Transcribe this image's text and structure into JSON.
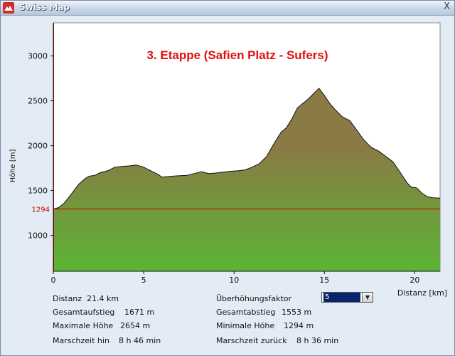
{
  "window": {
    "title": "Swiss Map",
    "close_label": "X"
  },
  "chart_data": {
    "type": "area",
    "title": "3. Etappe (Safien Platz - Sufers)",
    "xlabel": "Distanz [km]",
    "ylabel": "Höhe [m]",
    "xlim": [
      0,
      21.4
    ],
    "ylim": [
      600,
      3370
    ],
    "xticks": [
      0,
      5,
      10,
      15,
      20
    ],
    "yticks": [
      1000,
      1500,
      2000,
      2500,
      3000
    ],
    "reference_line": {
      "value": 1294,
      "label": "1294",
      "color": "#cc0000"
    },
    "fill_top_color": "#8a7a45",
    "fill_bottom_color": "#5ab534",
    "x": [
      0,
      0.3,
      0.6,
      1.0,
      1.4,
      1.8,
      2.0,
      2.3,
      2.6,
      3.0,
      3.4,
      3.8,
      4.2,
      4.6,
      5.0,
      5.4,
      5.8,
      6.0,
      6.3,
      6.6,
      7.0,
      7.4,
      7.8,
      8.2,
      8.6,
      9.0,
      9.4,
      9.8,
      10.2,
      10.6,
      11.0,
      11.4,
      11.8,
      12.2,
      12.6,
      12.9,
      13.2,
      13.5,
      13.8,
      14.1,
      14.4,
      14.7,
      15.0,
      15.3,
      15.6,
      16.0,
      16.4,
      16.8,
      17.2,
      17.6,
      18.0,
      18.4,
      18.8,
      19.2,
      19.6,
      19.8,
      20.1,
      20.4,
      20.7,
      21.0,
      21.4
    ],
    "y": [
      1294,
      1310,
      1360,
      1460,
      1570,
      1640,
      1660,
      1670,
      1700,
      1720,
      1760,
      1770,
      1775,
      1785,
      1760,
      1720,
      1680,
      1650,
      1655,
      1660,
      1665,
      1670,
      1690,
      1710,
      1690,
      1695,
      1705,
      1715,
      1720,
      1730,
      1760,
      1800,
      1880,
      2020,
      2150,
      2200,
      2300,
      2420,
      2470,
      2520,
      2580,
      2640,
      2560,
      2470,
      2400,
      2320,
      2280,
      2170,
      2060,
      1980,
      1940,
      1880,
      1820,
      1700,
      1580,
      1540,
      1530,
      1470,
      1430,
      1420,
      1415
    ]
  },
  "info": {
    "distanz_label": "Distanz",
    "distanz_value": "21.4 km",
    "aufstieg_label": "Gesamtaufstieg",
    "aufstieg_value": "1671 m",
    "max_label": "Maximale Höhe",
    "max_value": "2654 m",
    "hin_label": "Marschzeit hin",
    "hin_value": "8 h 46 min",
    "factor_label": "Überhöhungsfaktor",
    "factor_value": "5",
    "abstieg_label": "Gesamtabstieg",
    "abstieg_value": "1553 m",
    "min_label": "Minimale Höhe",
    "min_value": "1294 m",
    "zurueck_label": "Marschzeit zurück",
    "zurueck_value": "8 h 36 min"
  }
}
